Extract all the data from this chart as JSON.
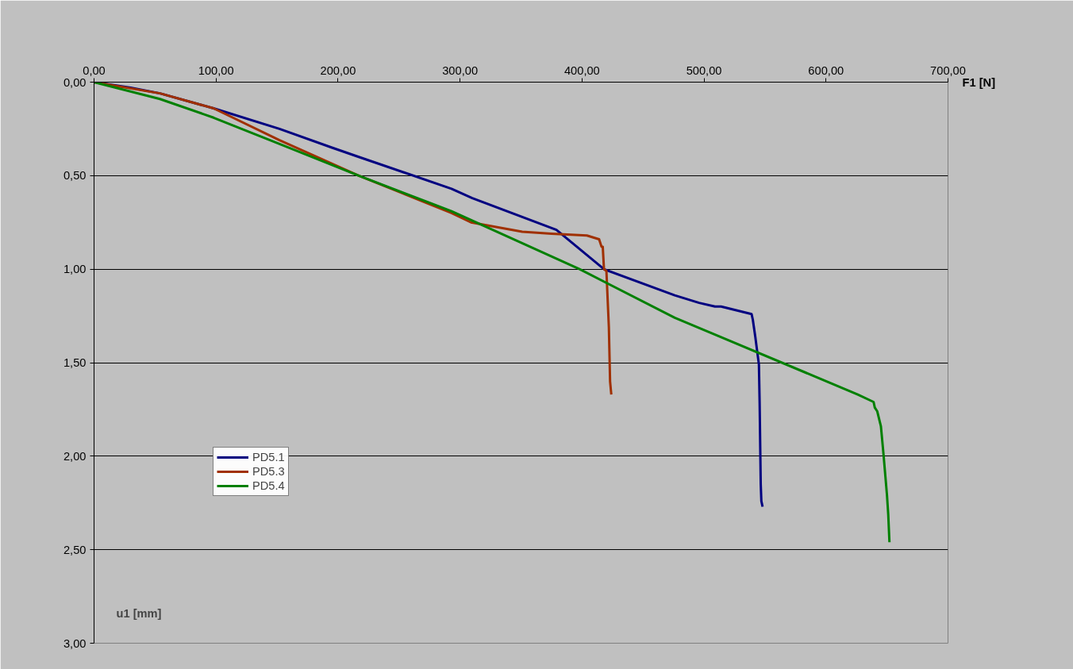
{
  "chart_data": {
    "type": "line",
    "xlabel": "F1 [N]",
    "ylabel": "u1 [mm]",
    "xlim": [
      0,
      700
    ],
    "ylim": [
      3,
      0
    ],
    "xticks": [
      {
        "value": 0,
        "label": "0,00"
      },
      {
        "value": 100,
        "label": "100,00"
      },
      {
        "value": 200,
        "label": "200,00"
      },
      {
        "value": 300,
        "label": "300,00"
      },
      {
        "value": 400,
        "label": "400,00"
      },
      {
        "value": 500,
        "label": "500,00"
      },
      {
        "value": 600,
        "label": "600,00"
      },
      {
        "value": 700,
        "label": "700,00"
      }
    ],
    "yticks": [
      {
        "value": 0,
        "label": "0,00"
      },
      {
        "value": 0.5,
        "label": "0,50"
      },
      {
        "value": 1,
        "label": "1,00"
      },
      {
        "value": 1.5,
        "label": "1,50"
      },
      {
        "value": 2,
        "label": "2,00"
      },
      {
        "value": 2.5,
        "label": "2,50"
      },
      {
        "value": 3,
        "label": "3,00"
      }
    ],
    "grid": "y",
    "legend": "left",
    "marker": "none",
    "line_style": "solid",
    "series": [
      {
        "name": "PD5.1",
        "color": "#000080",
        "x": [
          0,
          30,
          54,
          98,
          152,
          195,
          217,
          293,
          310,
          379,
          418,
          476,
          496,
          509,
          514,
          539,
          540,
          542,
          545,
          545.6,
          546.5,
          547,
          548
        ],
        "values": [
          0,
          0.03,
          0.06,
          0.14,
          0.25,
          0.35,
          0.4,
          0.57,
          0.62,
          0.79,
          1.0,
          1.14,
          1.18,
          1.2,
          1.2,
          1.24,
          1.27,
          1.36,
          1.51,
          1.72,
          2.15,
          2.24,
          2.27
        ]
      },
      {
        "name": "PD5.3",
        "color": "#a03000",
        "x": [
          0,
          54,
          98,
          152,
          217,
          293,
          309,
          351,
          375,
          404,
          414,
          416,
          417,
          418,
          420,
          422,
          423,
          424
        ],
        "values": [
          0,
          0.06,
          0.14,
          0.31,
          0.5,
          0.7,
          0.75,
          0.8,
          0.81,
          0.82,
          0.84,
          0.88,
          0.88,
          1.0,
          1.01,
          1.31,
          1.6,
          1.67
        ]
      },
      {
        "name": "PD5.4",
        "color": "#008000",
        "x": [
          0,
          54,
          98,
          152,
          217,
          293,
          398,
          476,
          509,
          626,
          639,
          640,
          642,
          645,
          647,
          650,
          651,
          652
        ],
        "values": [
          0,
          0.09,
          0.19,
          0.33,
          0.5,
          0.69,
          1.0,
          1.26,
          1.35,
          1.67,
          1.71,
          1.74,
          1.76,
          1.84,
          1.98,
          2.21,
          2.31,
          2.46
        ]
      }
    ]
  }
}
